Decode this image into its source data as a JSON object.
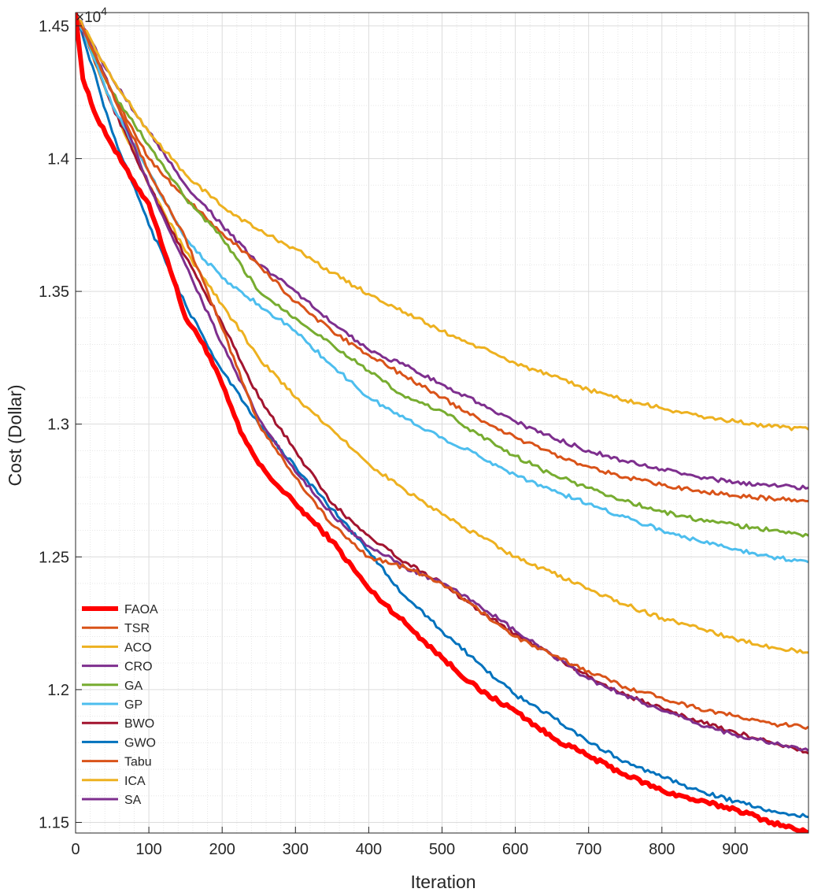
{
  "chart_data": {
    "type": "line",
    "title": "",
    "xlabel": "Iteration",
    "ylabel": "Cost (Dollar)",
    "y_exponent_label": "×10",
    "y_exponent_power": "4",
    "xlim": [
      0,
      1000
    ],
    "ylim": [
      1.146,
      1.455
    ],
    "x_ticks": [
      0,
      100,
      200,
      300,
      400,
      500,
      600,
      700,
      800,
      900
    ],
    "x_tick_labels": [
      "0",
      "100",
      "200",
      "300",
      "400",
      "500",
      "600",
      "700",
      "800",
      "900"
    ],
    "y_ticks": [
      1.15,
      1.2,
      1.25,
      1.3,
      1.35,
      1.4,
      1.45
    ],
    "y_tick_labels": [
      "1.15",
      "1.2",
      "1.25",
      "1.3",
      "1.35",
      "1.4",
      "1.45"
    ],
    "grid": true,
    "minor_grid": true,
    "legend_position": "bottom-left",
    "series": [
      {
        "name": "FAOA",
        "color": "#ff0000",
        "width": 6,
        "x": [
          0,
          10,
          25,
          50,
          75,
          100,
          125,
          150,
          175,
          200,
          225,
          250,
          275,
          300,
          350,
          400,
          450,
          500,
          550,
          600,
          650,
          700,
          750,
          800,
          850,
          900,
          950,
          1000
        ],
        "y": [
          1.455,
          1.43,
          1.418,
          1.405,
          1.393,
          1.383,
          1.362,
          1.34,
          1.33,
          1.315,
          1.297,
          1.285,
          1.277,
          1.27,
          1.256,
          1.238,
          1.225,
          1.212,
          1.2,
          1.192,
          1.182,
          1.175,
          1.168,
          1.162,
          1.158,
          1.155,
          1.15,
          1.146
        ]
      },
      {
        "name": "TSR",
        "color": "#d95319",
        "width": 3,
        "x": [
          0,
          50,
          100,
          150,
          200,
          250,
          300,
          350,
          400,
          450,
          500,
          550,
          600,
          650,
          700,
          750,
          800,
          850,
          900,
          950,
          1000
        ],
        "y": [
          1.455,
          1.425,
          1.395,
          1.37,
          1.336,
          1.3,
          1.28,
          1.262,
          1.25,
          1.246,
          1.24,
          1.23,
          1.22,
          1.213,
          1.207,
          1.201,
          1.197,
          1.193,
          1.19,
          1.187,
          1.186
        ]
      },
      {
        "name": "ACO",
        "color": "#edb120",
        "width": 3,
        "x": [
          0,
          50,
          100,
          150,
          200,
          250,
          300,
          350,
          400,
          450,
          500,
          550,
          600,
          650,
          700,
          750,
          800,
          850,
          900,
          950,
          1000
        ],
        "y": [
          1.455,
          1.43,
          1.41,
          1.394,
          1.382,
          1.373,
          1.366,
          1.357,
          1.349,
          1.342,
          1.335,
          1.329,
          1.323,
          1.318,
          1.313,
          1.309,
          1.306,
          1.303,
          1.301,
          1.299,
          1.298
        ]
      },
      {
        "name": "CRO",
        "color": "#7e2f8e",
        "width": 3,
        "x": [
          0,
          50,
          100,
          150,
          200,
          250,
          300,
          350,
          400,
          450,
          500,
          550,
          600,
          650,
          700,
          750,
          800,
          850,
          900,
          950,
          1000
        ],
        "y": [
          1.455,
          1.425,
          1.39,
          1.36,
          1.33,
          1.302,
          1.282,
          1.266,
          1.254,
          1.246,
          1.24,
          1.232,
          1.222,
          1.213,
          1.204,
          1.198,
          1.192,
          1.187,
          1.183,
          1.18,
          1.177
        ]
      },
      {
        "name": "GA",
        "color": "#77ac30",
        "width": 3,
        "x": [
          0,
          50,
          100,
          150,
          200,
          250,
          300,
          350,
          400,
          450,
          500,
          550,
          600,
          650,
          700,
          750,
          800,
          850,
          900,
          950,
          1000
        ],
        "y": [
          1.455,
          1.425,
          1.405,
          1.385,
          1.37,
          1.35,
          1.34,
          1.33,
          1.32,
          1.31,
          1.305,
          1.296,
          1.288,
          1.281,
          1.276,
          1.271,
          1.267,
          1.264,
          1.262,
          1.26,
          1.258
        ]
      },
      {
        "name": "GP",
        "color": "#4dbeee",
        "width": 3,
        "x": [
          0,
          50,
          100,
          150,
          200,
          250,
          300,
          350,
          400,
          450,
          500,
          550,
          600,
          650,
          700,
          750,
          800,
          850,
          900,
          950,
          1000
        ],
        "y": [
          1.455,
          1.42,
          1.395,
          1.37,
          1.355,
          1.345,
          1.335,
          1.322,
          1.31,
          1.302,
          1.295,
          1.288,
          1.281,
          1.275,
          1.27,
          1.265,
          1.26,
          1.256,
          1.253,
          1.25,
          1.248
        ]
      },
      {
        "name": "BWO",
        "color": "#a2142f",
        "width": 3,
        "x": [
          0,
          50,
          100,
          150,
          200,
          250,
          300,
          350,
          400,
          450,
          500,
          550,
          600,
          650,
          700,
          750,
          800,
          850,
          900,
          950,
          1000
        ],
        "y": [
          1.455,
          1.42,
          1.39,
          1.363,
          1.338,
          1.31,
          1.29,
          1.27,
          1.258,
          1.248,
          1.24,
          1.23,
          1.221,
          1.213,
          1.205,
          1.198,
          1.193,
          1.188,
          1.184,
          1.18,
          1.176
        ]
      },
      {
        "name": "GWO",
        "color": "#0072bd",
        "width": 3,
        "x": [
          0,
          50,
          100,
          150,
          200,
          250,
          300,
          350,
          400,
          450,
          500,
          550,
          600,
          650,
          700,
          750,
          800,
          850,
          900,
          950,
          1000
        ],
        "y": [
          1.455,
          1.41,
          1.375,
          1.345,
          1.32,
          1.3,
          1.284,
          1.268,
          1.252,
          1.235,
          1.222,
          1.21,
          1.198,
          1.19,
          1.18,
          1.173,
          1.167,
          1.162,
          1.158,
          1.154,
          1.152
        ]
      },
      {
        "name": "Tabu",
        "color": "#d95319",
        "width": 3,
        "x": [
          0,
          50,
          100,
          150,
          200,
          250,
          300,
          350,
          400,
          450,
          500,
          550,
          600,
          650,
          700,
          750,
          800,
          850,
          900,
          950,
          1000
        ],
        "y": [
          1.455,
          1.425,
          1.4,
          1.385,
          1.372,
          1.36,
          1.346,
          1.335,
          1.326,
          1.318,
          1.31,
          1.302,
          1.295,
          1.289,
          1.284,
          1.28,
          1.277,
          1.275,
          1.273,
          1.272,
          1.271
        ]
      },
      {
        "name": "ICA",
        "color": "#edb120",
        "width": 3,
        "x": [
          0,
          50,
          100,
          150,
          200,
          250,
          300,
          350,
          400,
          450,
          500,
          550,
          600,
          650,
          700,
          750,
          800,
          850,
          900,
          950,
          1000
        ],
        "y": [
          1.455,
          1.42,
          1.39,
          1.365,
          1.345,
          1.325,
          1.31,
          1.298,
          1.285,
          1.275,
          1.266,
          1.258,
          1.25,
          1.244,
          1.238,
          1.232,
          1.227,
          1.223,
          1.219,
          1.216,
          1.214
        ]
      },
      {
        "name": "SA",
        "color": "#7e2f8e",
        "width": 3,
        "x": [
          0,
          50,
          100,
          150,
          200,
          250,
          300,
          350,
          400,
          450,
          500,
          550,
          600,
          650,
          700,
          750,
          800,
          850,
          900,
          950,
          1000
        ],
        "y": [
          1.455,
          1.43,
          1.41,
          1.39,
          1.375,
          1.36,
          1.35,
          1.338,
          1.328,
          1.322,
          1.315,
          1.308,
          1.301,
          1.295,
          1.29,
          1.286,
          1.283,
          1.28,
          1.278,
          1.277,
          1.276
        ]
      }
    ]
  }
}
